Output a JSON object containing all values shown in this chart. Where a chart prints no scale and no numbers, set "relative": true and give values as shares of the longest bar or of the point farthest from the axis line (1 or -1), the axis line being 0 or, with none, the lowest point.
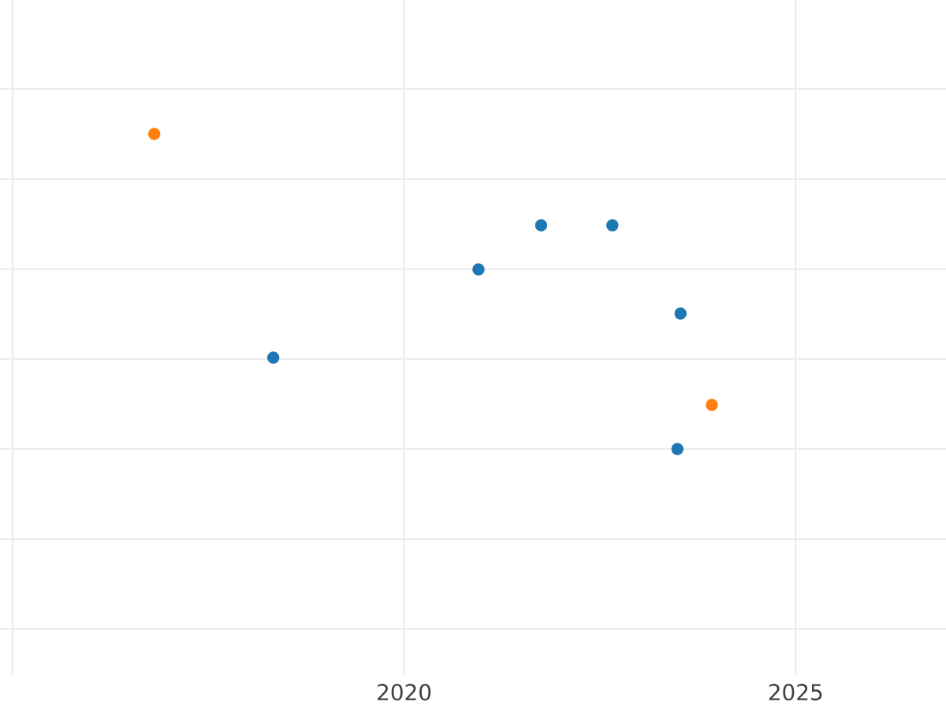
{
  "chart_data": {
    "type": "scatter",
    "relative": true,
    "grid": true,
    "marker": "circle",
    "xlim": [
      2014.84,
      2026.92
    ],
    "xticks": [
      {
        "value": 2015,
        "label": null
      },
      2020,
      2025
    ],
    "series": [
      {
        "color": "#1f77b4",
        "x": [
          2018.33,
          2020.95,
          2021.75,
          2022.66,
          2023.53,
          2023.49
        ],
        "values": [
          0.29,
          0.57,
          0.71,
          0.71,
          0.43,
          0
        ]
      },
      {
        "color": "#ff7f0e",
        "x": [
          2016.81,
          2023.93
        ],
        "values": [
          1,
          0.14
        ]
      }
    ]
  }
}
